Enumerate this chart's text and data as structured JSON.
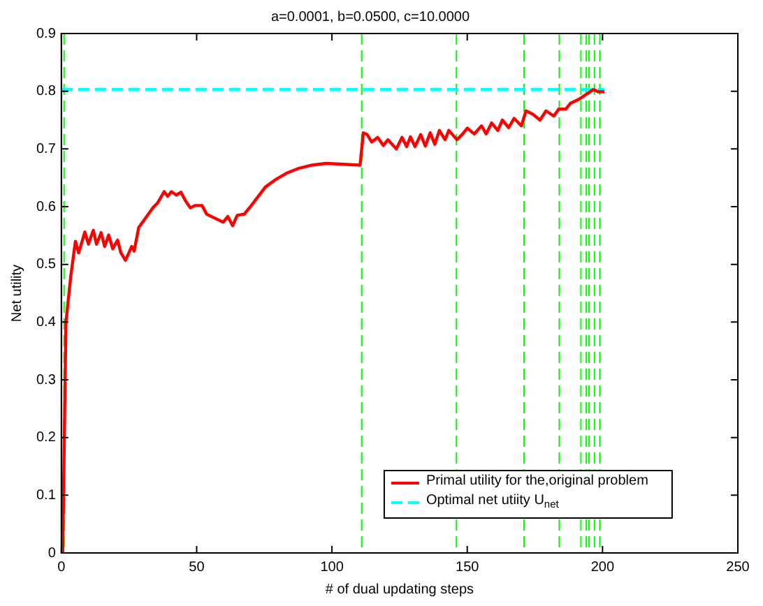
{
  "chart_data": {
    "type": "line",
    "title": "a=0.0001, b=0.0500, c=10.0000",
    "xlabel": "# of dual updating steps",
    "ylabel": "Net utility",
    "xlim": [
      0,
      250
    ],
    "xticks": [
      0,
      50,
      100,
      150,
      200,
      250
    ],
    "ylim": [
      0,
      0.9
    ],
    "yticks": [
      0,
      0.1,
      0.2,
      0.3,
      0.4,
      0.5,
      0.6,
      0.7,
      0.8,
      0.9
    ],
    "grid": false,
    "legend": "bottom",
    "marker": "none",
    "series": [
      {
        "name": "Primal utility for the,original problem",
        "color": "#ff0000",
        "line_style": "solid",
        "x": [
          0.5,
          1.7,
          3.5,
          5.2,
          6.4,
          8.7,
          10,
          11.8,
          13,
          14.7,
          16,
          17.5,
          19,
          20.8,
          22,
          23.7,
          26,
          26.9,
          28.6,
          30.3,
          33.8,
          35.5,
          38,
          39.3,
          40.7,
          42.5,
          44.2,
          45.9,
          47.7,
          49.4,
          52,
          53.7,
          57.2,
          59.8,
          61.5,
          63.3,
          65,
          67.6,
          70.2,
          72.8,
          75.4,
          78.9,
          83.2,
          87.5,
          92.7,
          97.9,
          110.4,
          111.6,
          113,
          114.7,
          116.9,
          119,
          120.7,
          123.8,
          125.9,
          127.6,
          129,
          130.7,
          132.8,
          134.5,
          136.3,
          138,
          139.7,
          141.8,
          143.2,
          146.2,
          148.3,
          150,
          152.6,
          155.3,
          157,
          159,
          161.3,
          163,
          165.3,
          167.3,
          170,
          171.7,
          174.3,
          176.9,
          179.1,
          182,
          183.8,
          186.4,
          188.1,
          189.9,
          191.6,
          194.1,
          196.7,
          198.4,
          200.7
        ],
        "values": [
          0.0,
          0.4,
          0.48,
          0.54,
          0.52,
          0.556,
          0.535,
          0.559,
          0.535,
          0.555,
          0.531,
          0.551,
          0.527,
          0.542,
          0.52,
          0.507,
          0.531,
          0.523,
          0.564,
          0.575,
          0.598,
          0.606,
          0.626,
          0.618,
          0.626,
          0.62,
          0.625,
          0.61,
          0.598,
          0.602,
          0.602,
          0.587,
          0.579,
          0.573,
          0.583,
          0.567,
          0.585,
          0.587,
          0.602,
          0.618,
          0.634,
          0.646,
          0.658,
          0.666,
          0.672,
          0.675,
          0.672,
          0.728,
          0.725,
          0.712,
          0.72,
          0.706,
          0.716,
          0.7,
          0.72,
          0.704,
          0.721,
          0.704,
          0.725,
          0.705,
          0.728,
          0.708,
          0.732,
          0.716,
          0.732,
          0.716,
          0.726,
          0.736,
          0.726,
          0.74,
          0.726,
          0.745,
          0.732,
          0.75,
          0.737,
          0.753,
          0.74,
          0.766,
          0.76,
          0.75,
          0.766,
          0.757,
          0.769,
          0.769,
          0.779,
          0.783,
          0.787,
          0.795,
          0.803,
          0.799,
          0.799
        ]
      },
      {
        "name": "Optimal net utiity U$_{net}$",
        "color": "#00ffff",
        "line_style": "dashed",
        "x": [
          0,
          200.7
        ],
        "values": [
          0.803,
          0.803
        ]
      }
    ],
    "ref_lines": [
      {
        "axis": "x",
        "value": 1,
        "color": "#00ff00",
        "line_style": "dashed"
      },
      {
        "axis": "x",
        "value": 111,
        "color": "#00ff00",
        "line_style": "dashed"
      },
      {
        "axis": "x",
        "value": 146,
        "color": "#00ff00",
        "line_style": "dashed"
      },
      {
        "axis": "x",
        "value": 171,
        "color": "#00ff00",
        "line_style": "dashed"
      },
      {
        "axis": "x",
        "value": 184,
        "color": "#00ff00",
        "line_style": "dashed"
      },
      {
        "axis": "x",
        "value": 192,
        "color": "#00ff00",
        "line_style": "dashed"
      },
      {
        "axis": "x",
        "value": 194,
        "color": "#00ff00",
        "line_style": "dashed"
      },
      {
        "axis": "x",
        "value": 195,
        "color": "#00ff00",
        "line_style": "dashed"
      },
      {
        "axis": "x",
        "value": 197,
        "color": "#00ff00",
        "line_style": "dashed"
      },
      {
        "axis": "x",
        "value": 199,
        "color": "#00ff00",
        "line_style": "dashed"
      }
    ]
  }
}
